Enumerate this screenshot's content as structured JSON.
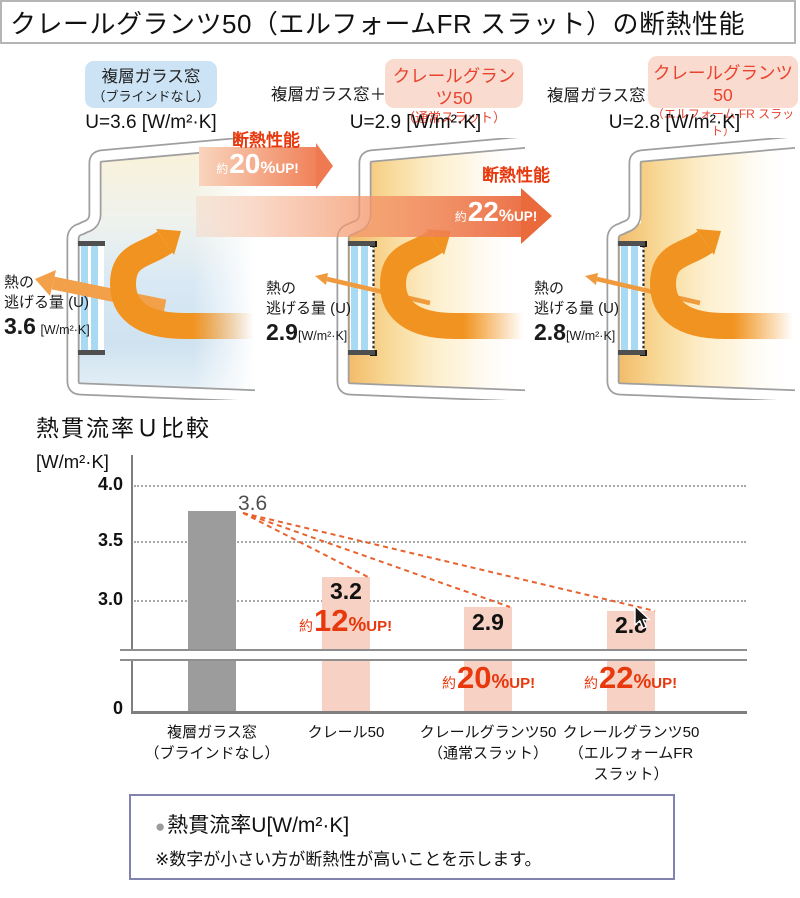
{
  "title": "クレールグランツ50（エルフォームFR スラット）の断熱性能",
  "panels": {
    "p1": {
      "box_line1": "複層ガラス窓",
      "box_line2": "（ブラインドなし）",
      "u": "U=3.6 [W/m²·K]",
      "cap1": "熱の",
      "cap2": "逃げる量 (U)",
      "val": "3.6",
      "unit": "[W/m²·K]"
    },
    "p2": {
      "prefix": "複層ガラス窓＋",
      "box_line1": "クレールグランツ50",
      "box_line2": "（通常スラット）",
      "u": "U=2.9 [W/m²·K]",
      "cap1": "熱の",
      "cap2": "逃げる量 (U)",
      "val": "2.9",
      "unit": "[W/m²·K]"
    },
    "p3": {
      "prefix": "複層ガラス窓＋",
      "box_line1": "クレールグランツ50",
      "box_line2": "（エルフォーム FR スラット）",
      "u": "U=2.8 [W/m²·K]",
      "cap1": "熱の",
      "cap2": "逃げる量 (U)",
      "val": "2.8",
      "unit": "[W/m²·K]"
    }
  },
  "arrows": {
    "a1": {
      "label": "断熱性能",
      "approx": "約",
      "num": "20",
      "pct": "%",
      "up": "UP!"
    },
    "a2": {
      "label": "断熱性能",
      "approx": "約",
      "num": "22",
      "pct": "%",
      "up": "UP!"
    }
  },
  "chart": {
    "title": "熱貫流率Ｕ比較",
    "unit": "[W/m²·K]",
    "t40": "4.0",
    "t35": "3.5",
    "t30": "3.0",
    "t0": "0",
    "v1": "3.6",
    "v2": "3.2",
    "v3": "2.9",
    "v4": "2.8",
    "pct12": {
      "approx": "約",
      "num": "12",
      "pct": "%",
      "up": "UP!"
    },
    "pct20": {
      "approx": "約",
      "num": "20",
      "pct": "%",
      "up": "UP!"
    },
    "pct22": {
      "approx": "約",
      "num": "22",
      "pct": "%",
      "up": "UP!"
    },
    "cat1a": "複層ガラス窓",
    "cat1b": "（ブラインドなし）",
    "cat2a": "クレール50",
    "cat3a": "クレールグランツ50",
    "cat3b": "（通常スラット）",
    "cat4a": "クレールグランツ50",
    "cat4b": "（エルフォームFR",
    "cat4c": "スラット）"
  },
  "note": {
    "bullet": "●",
    "line1": "熱貫流率U[W/m²·K]",
    "line2": "※数字が小さい方が断熱性が高いことを示します。"
  },
  "colors": {
    "accent_red": "#e8380d",
    "gray_bar": "#9c9c9c",
    "pink_bar": "#f7d2c4",
    "blue_label": "#cbe3f4",
    "pink_label": "#fadbd0",
    "orange_arrow": "#f19320",
    "dashed_connector": "#e8632e",
    "note_border": "#8282ae"
  },
  "chart_data": {
    "type": "bar",
    "title": "熱貫流率Ｕ比較",
    "ylabel": "[W/m²·K]",
    "categories": [
      "複層ガラス窓（ブラインドなし）",
      "クレール50",
      "クレールグランツ50（通常スラット）",
      "クレールグランツ50（エルフォームFR スラット）"
    ],
    "values": [
      3.6,
      3.2,
      2.9,
      2.8
    ],
    "bar_colors": [
      "#9c9c9c",
      "#f7d2c4",
      "#f7d2c4",
      "#f7d2c4"
    ],
    "yticks": [
      0,
      3.0,
      3.5,
      4.0
    ],
    "ylim": [
      0,
      4.2
    ],
    "axis_break": "between 0 and 3.0",
    "grid": "dotted horizontal at 3.0, 3.5, 4.0",
    "annotations": [
      {
        "target": "クレール50",
        "text": "約12%UP!"
      },
      {
        "target": "クレールグランツ50（通常スラット）",
        "text": "約20%UP!"
      },
      {
        "target": "クレールグランツ50（エルフォームFR スラット）",
        "text": "約22%UP!"
      },
      {
        "type": "dashed-lines",
        "from": "3.6 bar top",
        "to": "tops of other three bars"
      }
    ],
    "legend": "●熱貫流率U[W/m²·K] ※数字が小さい方が断熱性が高いことを示します。"
  }
}
